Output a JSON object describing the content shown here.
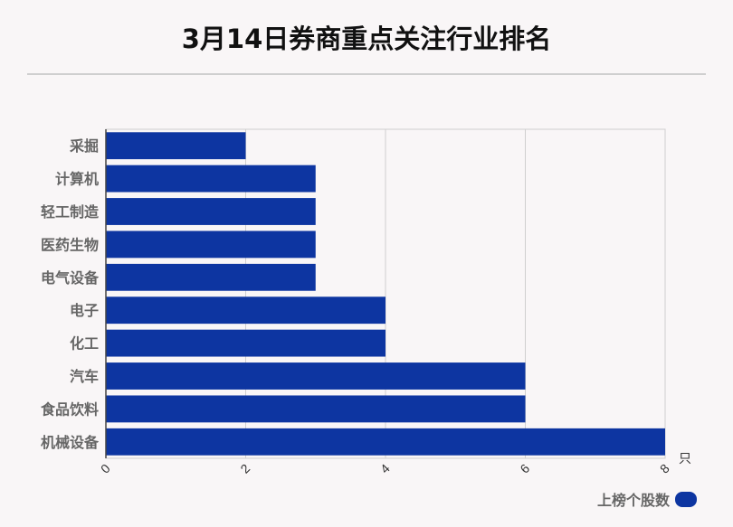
{
  "title": "3月14日券商重点关注行业排名",
  "legend": {
    "label": "上榜个股数",
    "color": "#0d35a1"
  },
  "chart_data": {
    "type": "bar",
    "orientation": "horizontal",
    "title": "3月14日券商重点关注行业排名",
    "categories": [
      "采掘",
      "计算机",
      "轻工制造",
      "医药生物",
      "电气设备",
      "电子",
      "化工",
      "汽车",
      "食品饮料",
      "机械设备"
    ],
    "series": [
      {
        "name": "上榜个股数",
        "values": [
          2,
          3,
          3,
          3,
          3,
          4,
          4,
          6,
          6,
          8
        ],
        "color": "#0d35a1"
      }
    ],
    "xlim": [
      0,
      8
    ],
    "xticks": [
      "0",
      "2",
      "4",
      "6",
      "8"
    ],
    "x_unit": "只",
    "grid": true,
    "legend_position": "bottom-right"
  }
}
